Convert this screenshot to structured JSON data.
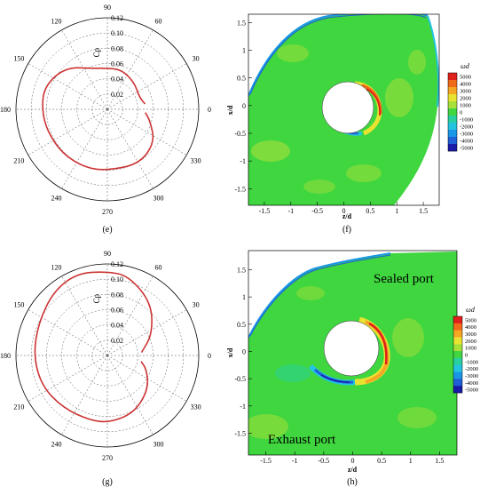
{
  "chart_data": [
    {
      "panel": "(e)",
      "type": "polar-line",
      "radial_label": "Cp",
      "r_ticks": [
        "0.02",
        "0.04",
        "0.06",
        "0.08",
        "0.10",
        "0.12"
      ],
      "r_max": 0.12,
      "angle_ticks": [
        "0",
        "30",
        "60",
        "90",
        "120",
        "150",
        "180",
        "210",
        "240",
        "270",
        "300",
        "330"
      ],
      "grid": true,
      "series": [
        {
          "color": "#cc3333",
          "points": [
            {
              "theta": 8,
              "r": 0.05
            },
            {
              "theta": 20,
              "r": 0.045
            },
            {
              "theta": 45,
              "r": 0.05
            },
            {
              "theta": 70,
              "r": 0.055
            },
            {
              "theta": 90,
              "r": 0.054
            },
            {
              "theta": 110,
              "r": 0.057
            },
            {
              "theta": 135,
              "r": 0.078
            },
            {
              "theta": 160,
              "r": 0.088
            },
            {
              "theta": 180,
              "r": 0.086
            },
            {
              "theta": 200,
              "r": 0.084
            },
            {
              "theta": 225,
              "r": 0.083
            },
            {
              "theta": 250,
              "r": 0.082
            },
            {
              "theta": 270,
              "r": 0.08
            },
            {
              "theta": 300,
              "r": 0.083
            },
            {
              "theta": 325,
              "r": 0.076
            },
            {
              "theta": 345,
              "r": 0.058
            },
            {
              "theta": 355,
              "r": 0.05
            }
          ]
        }
      ]
    },
    {
      "panel": "(f)",
      "type": "heatmap",
      "colorbar_title": "ωd",
      "colorbar_ticks": [
        "5000",
        "4000",
        "3000",
        "2000",
        "1000",
        "0",
        "-1000",
        "-2000",
        "-3000",
        "-4000",
        "-5000"
      ],
      "xlabel": "z/d",
      "ylabel": "x/d",
      "x_ticks": [
        "-1.5",
        "-1",
        "-0.5",
        "0",
        "0.5",
        "1",
        "1.5"
      ],
      "y_ticks": [
        "-1.5",
        "-1",
        "-0.5",
        "0",
        "0.5",
        "1",
        "1.5"
      ],
      "xlim": [
        -1.8,
        1.8
      ],
      "ylim": [
        -1.8,
        1.65
      ]
    },
    {
      "panel": "(g)",
      "type": "polar-line",
      "radial_label": "Cp",
      "r_ticks": [
        "0.02",
        "0.04",
        "0.06",
        "0.08",
        "0.10",
        "0.12"
      ],
      "r_max": 0.12,
      "angle_ticks": [
        "0",
        "30",
        "60",
        "90",
        "120",
        "150",
        "180",
        "210",
        "240",
        "270",
        "300",
        "330"
      ],
      "grid": true,
      "series": [
        {
          "color": "#cc3333",
          "points": [
            {
              "theta": 5,
              "r": 0.045
            },
            {
              "theta": 25,
              "r": 0.065
            },
            {
              "theta": 50,
              "r": 0.09
            },
            {
              "theta": 75,
              "r": 0.108
            },
            {
              "theta": 90,
              "r": 0.11
            },
            {
              "theta": 110,
              "r": 0.115
            },
            {
              "theta": 130,
              "r": 0.11
            },
            {
              "theta": 155,
              "r": 0.1
            },
            {
              "theta": 180,
              "r": 0.097
            },
            {
              "theta": 205,
              "r": 0.095
            },
            {
              "theta": 230,
              "r": 0.09
            },
            {
              "theta": 255,
              "r": 0.088
            },
            {
              "theta": 272,
              "r": 0.088
            },
            {
              "theta": 295,
              "r": 0.083
            },
            {
              "theta": 320,
              "r": 0.07
            },
            {
              "theta": 340,
              "r": 0.055
            },
            {
              "theta": 350,
              "r": 0.045
            }
          ]
        }
      ]
    },
    {
      "panel": "(h)",
      "type": "heatmap",
      "colorbar_title": "ωd",
      "colorbar_ticks": [
        "5000",
        "4000",
        "3000",
        "2000",
        "1000",
        "0",
        "-1000",
        "-2000",
        "-3000",
        "-4000",
        "-5000"
      ],
      "xlabel": "z/d",
      "ylabel": "x/d",
      "x_ticks": [
        "-1.5",
        "-1",
        "-0.5",
        "0",
        "0.5",
        "1",
        "1.5"
      ],
      "y_ticks": [
        "-1.5",
        "-1",
        "-0.5",
        "0",
        "0.5",
        "1",
        "1.5"
      ],
      "xlim": [
        -1.8,
        1.8
      ],
      "ylim": [
        -1.9,
        1.85
      ],
      "annotations": [
        "Sealed port",
        "Exhaust port"
      ]
    }
  ],
  "colorbar_colors": [
    "#e0201a",
    "#f06a1a",
    "#f5a623",
    "#e8e330",
    "#a8e03a",
    "#3fd63f",
    "#28d0a0",
    "#22c4e0",
    "#1a96e6",
    "#1f5fd8",
    "#1a1aa8"
  ]
}
